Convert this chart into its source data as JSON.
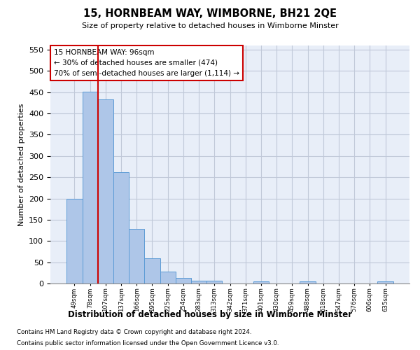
{
  "title": "15, HORNBEAM WAY, WIMBORNE, BH21 2QE",
  "subtitle": "Size of property relative to detached houses in Wimborne Minster",
  "xlabel": "Distribution of detached houses by size in Wimborne Minster",
  "ylabel": "Number of detached properties",
  "footer_line1": "Contains HM Land Registry data © Crown copyright and database right 2024.",
  "footer_line2": "Contains public sector information licensed under the Open Government Licence v3.0.",
  "annotation_line1": "15 HORNBEAM WAY: 96sqm",
  "annotation_line2": "← 30% of detached houses are smaller (474)",
  "annotation_line3": "70% of semi-detached houses are larger (1,114) →",
  "bar_heights": [
    199,
    452,
    433,
    262,
    129,
    60,
    28,
    14,
    7,
    6,
    0,
    0,
    5,
    0,
    0,
    5,
    0,
    0,
    0,
    0,
    5
  ],
  "categories": [
    "49sqm",
    "78sqm",
    "107sqm",
    "137sqm",
    "166sqm",
    "195sqm",
    "225sqm",
    "254sqm",
    "283sqm",
    "313sqm",
    "342sqm",
    "371sqm",
    "401sqm",
    "430sqm",
    "459sqm",
    "488sqm",
    "518sqm",
    "547sqm",
    "576sqm",
    "606sqm",
    "635sqm"
  ],
  "bar_color": "#aec6e8",
  "bar_edge_color": "#5b9bd5",
  "vline_x": 1.5,
  "vline_color": "#cc0000",
  "grid_color": "#c0c8d8",
  "background_color": "#e8eef8",
  "ylim_max": 560,
  "yticks": [
    0,
    50,
    100,
    150,
    200,
    250,
    300,
    350,
    400,
    450,
    500,
    550
  ]
}
